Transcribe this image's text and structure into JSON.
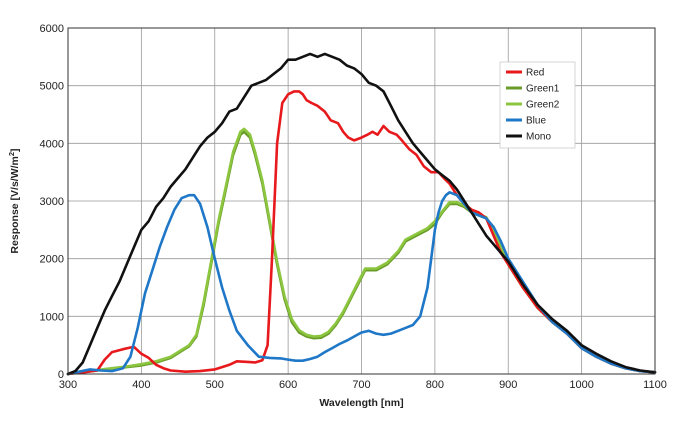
{
  "chart_data": {
    "type": "line",
    "title": "",
    "xlabel": "Wavelength [nm]",
    "ylabel": "Response [V/s/W/m²]",
    "xlim": [
      300,
      1100
    ],
    "ylim": [
      0,
      6000
    ],
    "xticks": [
      300,
      400,
      500,
      600,
      700,
      800,
      900,
      1000,
      1100
    ],
    "yticks": [
      0,
      1000,
      2000,
      3000,
      4000,
      5000,
      6000
    ],
    "grid": true,
    "legend_position": "top-right",
    "series": [
      {
        "name": "Red",
        "color": "#e8191c",
        "x": [
          300,
          320,
          340,
          350,
          360,
          375,
          385,
          390,
          400,
          410,
          420,
          430,
          440,
          460,
          480,
          500,
          510,
          520,
          530,
          545,
          555,
          565,
          572,
          578,
          585,
          592,
          600,
          608,
          615,
          620,
          625,
          632,
          640,
          650,
          658,
          668,
          675,
          682,
          690,
          700,
          708,
          715,
          722,
          730,
          738,
          748,
          755,
          765,
          775,
          785,
          795,
          805,
          812,
          820,
          830,
          840,
          850,
          860,
          870,
          880,
          890,
          900,
          920,
          940,
          960,
          980,
          1000,
          1020,
          1040,
          1060,
          1080,
          1100
        ],
        "y": [
          0,
          30,
          60,
          250,
          380,
          430,
          460,
          470,
          350,
          280,
          160,
          100,
          60,
          40,
          50,
          80,
          120,
          160,
          220,
          210,
          200,
          240,
          500,
          2000,
          4000,
          4700,
          4850,
          4900,
          4900,
          4850,
          4750,
          4700,
          4650,
          4550,
          4400,
          4350,
          4200,
          4100,
          4050,
          4100,
          4150,
          4200,
          4150,
          4300,
          4200,
          4150,
          4050,
          3900,
          3800,
          3600,
          3500,
          3500,
          3400,
          3300,
          3100,
          2950,
          2850,
          2800,
          2700,
          2400,
          2100,
          1900,
          1500,
          1150,
          900,
          700,
          450,
          300,
          180,
          100,
          50,
          30
        ]
      },
      {
        "name": "Green1",
        "color": "#6a9c2a",
        "x": [
          300,
          320,
          340,
          360,
          380,
          400,
          420,
          440,
          455,
          465,
          475,
          485,
          495,
          505,
          515,
          525,
          535,
          540,
          548,
          555,
          565,
          575,
          585,
          595,
          605,
          615,
          625,
          635,
          645,
          655,
          665,
          675,
          685,
          695,
          705,
          720,
          735,
          750,
          760,
          775,
          790,
          800,
          810,
          820,
          830,
          840,
          850,
          860,
          870,
          880,
          890,
          900,
          920,
          940,
          960,
          980,
          1000,
          1020,
          1040,
          1060,
          1080,
          1100
        ],
        "y": [
          0,
          30,
          60,
          90,
          120,
          150,
          200,
          280,
          400,
          480,
          650,
          1200,
          1900,
          2600,
          3200,
          3800,
          4150,
          4200,
          4100,
          3800,
          3300,
          2600,
          1900,
          1300,
          900,
          720,
          650,
          620,
          630,
          700,
          850,
          1050,
          1300,
          1550,
          1800,
          1800,
          1900,
          2100,
          2300,
          2400,
          2500,
          2600,
          2800,
          2950,
          2950,
          2900,
          2800,
          2750,
          2700,
          2500,
          2200,
          1900,
          1500,
          1150,
          900,
          700,
          450,
          300,
          180,
          100,
          50,
          30
        ]
      },
      {
        "name": "Green2",
        "color": "#8cc63f",
        "x": [
          300,
          320,
          340,
          360,
          380,
          400,
          420,
          440,
          455,
          465,
          475,
          485,
          495,
          505,
          515,
          525,
          535,
          540,
          548,
          555,
          565,
          575,
          585,
          595,
          605,
          615,
          625,
          635,
          645,
          655,
          665,
          675,
          685,
          695,
          705,
          720,
          735,
          750,
          760,
          775,
          790,
          800,
          810,
          820,
          830,
          840,
          850,
          860,
          870,
          880,
          890,
          900,
          920,
          940,
          960,
          980,
          1000,
          1020,
          1040,
          1060,
          1080,
          1100
        ],
        "y": [
          0,
          40,
          70,
          100,
          130,
          170,
          220,
          300,
          420,
          500,
          680,
          1250,
          1950,
          2650,
          3250,
          3850,
          4200,
          4250,
          4150,
          3850,
          3350,
          2650,
          1950,
          1350,
          950,
          760,
          680,
          650,
          660,
          730,
          880,
          1080,
          1330,
          1580,
          1830,
          1830,
          1930,
          2130,
          2330,
          2430,
          2530,
          2650,
          2820,
          2980,
          2980,
          2920,
          2830,
          2760,
          2720,
          2500,
          2200,
          1900,
          1500,
          1150,
          900,
          700,
          450,
          300,
          180,
          100,
          50,
          30
        ]
      },
      {
        "name": "Blue",
        "color": "#1f77c8",
        "x": [
          300,
          315,
          330,
          345,
          360,
          375,
          385,
          395,
          405,
          415,
          425,
          435,
          445,
          455,
          465,
          472,
          480,
          490,
          500,
          510,
          520,
          530,
          545,
          560,
          575,
          590,
          600,
          610,
          620,
          630,
          640,
          650,
          660,
          670,
          680,
          690,
          700,
          710,
          720,
          730,
          740,
          750,
          760,
          770,
          780,
          790,
          795,
          800,
          805,
          810,
          815,
          820,
          830,
          840,
          850,
          860,
          870,
          880,
          890,
          900,
          920,
          940,
          960,
          980,
          1000,
          1020,
          1040,
          1060,
          1080,
          1100
        ],
        "y": [
          0,
          40,
          80,
          60,
          50,
          100,
          300,
          800,
          1400,
          1800,
          2200,
          2550,
          2850,
          3050,
          3100,
          3100,
          2950,
          2550,
          2000,
          1500,
          1100,
          750,
          500,
          300,
          280,
          270,
          250,
          230,
          230,
          260,
          300,
          380,
          450,
          520,
          580,
          650,
          720,
          750,
          700,
          680,
          700,
          750,
          800,
          850,
          1000,
          1500,
          2000,
          2500,
          2800,
          3000,
          3100,
          3150,
          3100,
          2950,
          2800,
          2750,
          2700,
          2550,
          2300,
          2000,
          1600,
          1200,
          900,
          700,
          450,
          300,
          180,
          100,
          50,
          30
        ]
      },
      {
        "name": "Mono",
        "color": "#111111",
        "x": [
          300,
          310,
          320,
          330,
          340,
          350,
          360,
          370,
          380,
          390,
          400,
          410,
          420,
          430,
          440,
          450,
          460,
          470,
          480,
          490,
          500,
          510,
          520,
          530,
          540,
          550,
          560,
          570,
          580,
          590,
          600,
          610,
          620,
          630,
          640,
          650,
          660,
          670,
          680,
          690,
          700,
          710,
          720,
          730,
          740,
          750,
          760,
          770,
          780,
          790,
          800,
          810,
          820,
          830,
          840,
          850,
          860,
          870,
          880,
          890,
          900,
          920,
          940,
          960,
          980,
          1000,
          1020,
          1040,
          1060,
          1080,
          1100
        ],
        "y": [
          0,
          50,
          200,
          500,
          800,
          1100,
          1350,
          1600,
          1900,
          2200,
          2500,
          2650,
          2900,
          3050,
          3250,
          3400,
          3550,
          3750,
          3950,
          4100,
          4200,
          4350,
          4550,
          4600,
          4800,
          5000,
          5050,
          5100,
          5200,
          5300,
          5450,
          5450,
          5500,
          5550,
          5500,
          5550,
          5500,
          5450,
          5350,
          5300,
          5200,
          5050,
          5000,
          4900,
          4650,
          4400,
          4200,
          4000,
          3850,
          3700,
          3550,
          3450,
          3350,
          3200,
          3000,
          2800,
          2600,
          2400,
          2250,
          2100,
          1950,
          1550,
          1200,
          950,
          750,
          500,
          350,
          220,
          120,
          60,
          30
        ]
      }
    ]
  }
}
